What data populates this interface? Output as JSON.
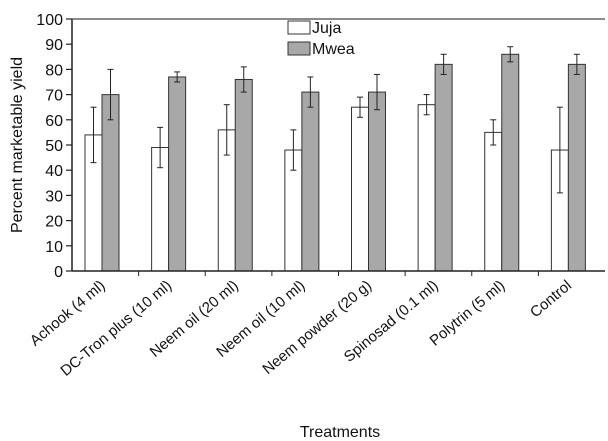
{
  "chart_data": {
    "type": "bar",
    "title": "",
    "xlabel": "Treatments",
    "ylabel": "Percent marketable yield",
    "ylim": [
      0,
      100
    ],
    "yticks": [
      0,
      10,
      20,
      30,
      40,
      50,
      60,
      70,
      80,
      90,
      100
    ],
    "categories": [
      "Achook (4 ml)",
      "DC-Tron plus (10 ml)",
      "Neem oil (20 ml)",
      "Neem oil (10 ml)",
      "Neem powder (20 g)",
      "Spinosad (0.1 ml)",
      "Polytrin (5 ml)",
      "Control"
    ],
    "series": [
      {
        "name": "Juja",
        "color": "#ffffff",
        "values": [
          54,
          49,
          56,
          48,
          65,
          66,
          55,
          48
        ],
        "errors": [
          11,
          8,
          10,
          8,
          4,
          4,
          5,
          17
        ]
      },
      {
        "name": "Mwea",
        "color": "#a8a8a8",
        "values": [
          70,
          77,
          76,
          71,
          71,
          82,
          86,
          82
        ],
        "errors": [
          10,
          2,
          5,
          6,
          7,
          4,
          3,
          4
        ]
      }
    ],
    "legend_position": "top-center",
    "grid": false
  }
}
